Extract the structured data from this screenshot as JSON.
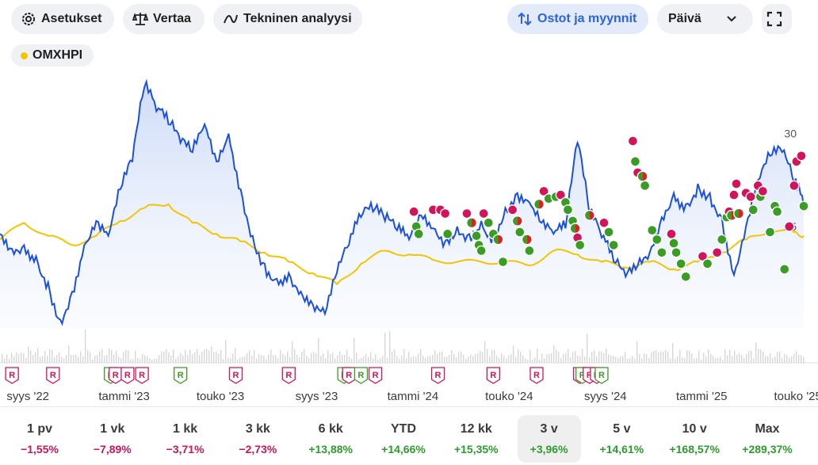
{
  "toolbar": {
    "settings": "Asetukset",
    "compare": "Vertaa",
    "technical": "Tekninen analyysi",
    "trades": "Ostot ja myynnit",
    "interval": "Päivä"
  },
  "legend": {
    "label": "OMXHPI",
    "color": "#f5c400"
  },
  "colors": {
    "stock": "#1a4fe0",
    "index": "#f5c400",
    "buy": "#3a9d23",
    "sell": "#d3135a",
    "volume": "#d7d7d7"
  },
  "chart_data": {
    "type": "line",
    "y_axis_ticks": [
      25,
      30
    ],
    "y_axis_side": "right",
    "x_tick_labels": [
      "syys '22",
      "tammi '23",
      "touko '23",
      "syys '23",
      "tammi '24",
      "touko '24",
      "syys '24",
      "tammi '25",
      "touko '25"
    ],
    "x_tick_positions": [
      0.5,
      4.5,
      8.5,
      12.5,
      16.5,
      20.5,
      24.5,
      28.5,
      32.5
    ],
    "x_unit": "months since Jun 2022",
    "series": [
      {
        "key": "stock",
        "x": [
          0,
          0.5,
          1,
          1.5,
          2,
          2.5,
          3,
          3.5,
          4,
          4.5,
          5,
          5.5,
          6,
          6.5,
          7,
          7.5,
          8,
          8.5,
          9,
          9.5,
          10,
          10.5,
          11,
          11.5,
          12,
          12.5,
          13,
          13.5,
          14,
          14.5,
          15,
          15.5,
          16,
          16.5,
          17,
          17.5,
          18,
          18.5,
          19,
          19.5,
          20,
          20.5,
          21,
          21.5,
          22,
          22.5,
          23,
          23.5,
          24,
          24.5,
          25,
          25.5,
          26,
          26.5,
          27,
          27.5,
          28,
          28.5,
          29,
          29.5,
          30,
          30.5,
          31,
          31.5,
          32,
          32.5,
          33,
          33.4
        ],
        "values": [
          24.6,
          23.8,
          24.0,
          23.4,
          22.0,
          20.0,
          21.5,
          24.0,
          25.3,
          24.5,
          27.0,
          28.5,
          32.5,
          31.2,
          30.5,
          29.5,
          29.0,
          30.5,
          28.5,
          30.0,
          27.0,
          24.5,
          23.0,
          22.2,
          22.5,
          21.5,
          20.8,
          20.3,
          22.5,
          24.0,
          25.5,
          25.8,
          25.3,
          24.8,
          24.3,
          25.6,
          24.9,
          24.2,
          25.0,
          24.6,
          25.3,
          24.5,
          26.0,
          26.8,
          26.3,
          25.2,
          24.6,
          24.9,
          29.5,
          25.6,
          24.4,
          23.1,
          22.3,
          22.9,
          23.6,
          25.5,
          26.8,
          26.2,
          27.3,
          26.8,
          25.5,
          22.4,
          25.0,
          27.5,
          28.8,
          29.0,
          27.3,
          26.1
        ]
      },
      {
        "key": "index",
        "x": [
          0,
          1,
          2,
          3,
          4,
          5,
          6,
          7,
          8,
          9,
          10,
          11,
          12,
          13,
          14,
          15,
          16,
          17,
          18,
          19,
          20,
          21,
          22,
          23,
          24,
          25,
          26,
          27,
          28,
          29,
          30,
          31,
          32,
          33,
          33.4
        ],
        "values": [
          24.3,
          25.2,
          24.5,
          24.0,
          24.5,
          25.3,
          26.0,
          26.2,
          25.2,
          24.6,
          24.2,
          23.6,
          23.1,
          22.5,
          21.9,
          23.0,
          23.7,
          23.5,
          23.2,
          23.1,
          23.1,
          23.1,
          22.9,
          23.7,
          23.5,
          23.1,
          22.8,
          23.1,
          22.7,
          23.1,
          23.6,
          24.3,
          24.8,
          24.7,
          24.5
        ]
      }
    ],
    "ylim": [
      19.5,
      32.5
    ],
    "xlim": [
      0,
      33.4
    ],
    "trade_markers": [
      {
        "x": 17.2,
        "y": 25.8,
        "type": "sell"
      },
      {
        "x": 17.3,
        "y": 25.0,
        "type": "buy"
      },
      {
        "x": 17.4,
        "y": 24.6,
        "type": "buy"
      },
      {
        "x": 18.0,
        "y": 25.9,
        "type": "sell"
      },
      {
        "x": 18.3,
        "y": 25.9,
        "type": "sell"
      },
      {
        "x": 18.5,
        "y": 25.7,
        "type": "sell"
      },
      {
        "x": 18.6,
        "y": 24.6,
        "type": "buy"
      },
      {
        "x": 19.4,
        "y": 25.7,
        "type": "sell"
      },
      {
        "x": 19.6,
        "y": 25.2,
        "type": "mixed"
      },
      {
        "x": 19.8,
        "y": 24.5,
        "type": "buy"
      },
      {
        "x": 19.9,
        "y": 24.0,
        "type": "buy"
      },
      {
        "x": 20.0,
        "y": 23.7,
        "type": "buy"
      },
      {
        "x": 20.1,
        "y": 25.7,
        "type": "sell"
      },
      {
        "x": 20.3,
        "y": 25.2,
        "type": "buy"
      },
      {
        "x": 20.5,
        "y": 24.6,
        "type": "buy"
      },
      {
        "x": 20.7,
        "y": 24.3,
        "type": "mixed"
      },
      {
        "x": 20.9,
        "y": 23.1,
        "type": "buy"
      },
      {
        "x": 21.3,
        "y": 25.9,
        "type": "sell"
      },
      {
        "x": 21.5,
        "y": 25.3,
        "type": "mixed"
      },
      {
        "x": 21.6,
        "y": 24.7,
        "type": "buy"
      },
      {
        "x": 21.9,
        "y": 24.3,
        "type": "mixed"
      },
      {
        "x": 22.0,
        "y": 23.7,
        "type": "buy"
      },
      {
        "x": 22.4,
        "y": 26.2,
        "type": "mixed"
      },
      {
        "x": 22.6,
        "y": 26.9,
        "type": "sell"
      },
      {
        "x": 22.8,
        "y": 26.5,
        "type": "buy"
      },
      {
        "x": 23.1,
        "y": 26.6,
        "type": "buy"
      },
      {
        "x": 23.3,
        "y": 26.7,
        "type": "sell"
      },
      {
        "x": 23.5,
        "y": 26.3,
        "type": "buy"
      },
      {
        "x": 23.6,
        "y": 25.9,
        "type": "buy"
      },
      {
        "x": 23.8,
        "y": 25.3,
        "type": "buy"
      },
      {
        "x": 23.9,
        "y": 24.9,
        "type": "mixed"
      },
      {
        "x": 24.0,
        "y": 24.4,
        "type": "sell"
      },
      {
        "x": 24.1,
        "y": 24.0,
        "type": "buy"
      },
      {
        "x": 24.5,
        "y": 25.6,
        "type": "mixed"
      },
      {
        "x": 25.1,
        "y": 25.2,
        "type": "sell"
      },
      {
        "x": 25.3,
        "y": 24.7,
        "type": "buy"
      },
      {
        "x": 25.5,
        "y": 24.0,
        "type": "buy"
      },
      {
        "x": 26.3,
        "y": 29.6,
        "type": "sell"
      },
      {
        "x": 26.4,
        "y": 28.5,
        "type": "buy"
      },
      {
        "x": 26.5,
        "y": 27.9,
        "type": "sell"
      },
      {
        "x": 26.7,
        "y": 27.7,
        "type": "mixed"
      },
      {
        "x": 26.8,
        "y": 27.2,
        "type": "buy"
      },
      {
        "x": 27.1,
        "y": 24.8,
        "type": "buy"
      },
      {
        "x": 27.3,
        "y": 24.3,
        "type": "buy"
      },
      {
        "x": 27.5,
        "y": 23.6,
        "type": "buy"
      },
      {
        "x": 27.9,
        "y": 24.6,
        "type": "sell"
      },
      {
        "x": 28.0,
        "y": 24.1,
        "type": "buy"
      },
      {
        "x": 28.1,
        "y": 23.6,
        "type": "buy"
      },
      {
        "x": 28.3,
        "y": 23.0,
        "type": "buy"
      },
      {
        "x": 28.5,
        "y": 22.3,
        "type": "buy"
      },
      {
        "x": 29.2,
        "y": 23.4,
        "type": "sell"
      },
      {
        "x": 29.4,
        "y": 23.0,
        "type": "buy"
      },
      {
        "x": 29.8,
        "y": 23.6,
        "type": "sell"
      },
      {
        "x": 30.0,
        "y": 24.3,
        "type": "buy"
      },
      {
        "x": 30.2,
        "y": 25.5,
        "type": "buy"
      },
      {
        "x": 30.3,
        "y": 25.8,
        "type": "sell"
      },
      {
        "x": 30.4,
        "y": 25.6,
        "type": "mixed"
      },
      {
        "x": 30.5,
        "y": 26.7,
        "type": "sell"
      },
      {
        "x": 30.6,
        "y": 27.3,
        "type": "sell"
      },
      {
        "x": 30.7,
        "y": 25.7,
        "type": "mixed"
      },
      {
        "x": 31.0,
        "y": 26.8,
        "type": "sell"
      },
      {
        "x": 31.2,
        "y": 26.6,
        "type": "sell"
      },
      {
        "x": 31.3,
        "y": 25.9,
        "type": "buy"
      },
      {
        "x": 31.5,
        "y": 27.2,
        "type": "sell"
      },
      {
        "x": 31.6,
        "y": 26.6,
        "type": "buy"
      },
      {
        "x": 31.7,
        "y": 26.9,
        "type": "sell"
      },
      {
        "x": 32.0,
        "y": 24.7,
        "type": "buy"
      },
      {
        "x": 32.2,
        "y": 26.1,
        "type": "buy"
      },
      {
        "x": 32.3,
        "y": 25.8,
        "type": "buy"
      },
      {
        "x": 32.6,
        "y": 22.7,
        "type": "buy"
      },
      {
        "x": 32.8,
        "y": 25.0,
        "type": "sell"
      },
      {
        "x": 33.0,
        "y": 27.2,
        "type": "sell"
      },
      {
        "x": 33.1,
        "y": 28.5,
        "type": "sell"
      },
      {
        "x": 33.3,
        "y": 28.8,
        "type": "sell"
      },
      {
        "x": 33.4,
        "y": 26.1,
        "type": "buy"
      }
    ],
    "event_markers": [
      {
        "x": 0.5,
        "type": "red"
      },
      {
        "x": 2.2,
        "type": "red"
      },
      {
        "x": 4.6,
        "type": "green"
      },
      {
        "x": 4.8,
        "type": "red"
      },
      {
        "x": 5.3,
        "type": "red"
      },
      {
        "x": 5.9,
        "type": "red"
      },
      {
        "x": 7.5,
        "type": "green"
      },
      {
        "x": 9.8,
        "type": "red"
      },
      {
        "x": 12.0,
        "type": "red"
      },
      {
        "x": 14.3,
        "type": "green"
      },
      {
        "x": 14.5,
        "type": "red"
      },
      {
        "x": 15.0,
        "type": "green"
      },
      {
        "x": 15.6,
        "type": "red"
      },
      {
        "x": 18.2,
        "type": "red"
      },
      {
        "x": 20.5,
        "type": "red"
      },
      {
        "x": 22.3,
        "type": "red"
      },
      {
        "x": 24.1,
        "type": "red"
      },
      {
        "x": 24.2,
        "type": "green"
      },
      {
        "x": 24.5,
        "type": "red"
      },
      {
        "x": 24.8,
        "type": "red"
      },
      {
        "x": 25.0,
        "type": "green"
      }
    ],
    "event_marker_label": "R"
  },
  "periods": [
    {
      "label": "1 pv",
      "change": "−1,55%",
      "dir": "neg"
    },
    {
      "label": "1 vk",
      "change": "−7,89%",
      "dir": "neg"
    },
    {
      "label": "1 kk",
      "change": "−3,71%",
      "dir": "neg"
    },
    {
      "label": "3 kk",
      "change": "−2,73%",
      "dir": "neg"
    },
    {
      "label": "6 kk",
      "change": "+13,88%",
      "dir": "pos"
    },
    {
      "label": "YTD",
      "change": "+14,66%",
      "dir": "pos"
    },
    {
      "label": "12 kk",
      "change": "+15,35%",
      "dir": "pos"
    },
    {
      "label": "3 v",
      "change": "+3,96%",
      "dir": "pos",
      "active": true
    },
    {
      "label": "5 v",
      "change": "+14,61%",
      "dir": "pos"
    },
    {
      "label": "10 v",
      "change": "+168,57%",
      "dir": "pos"
    },
    {
      "label": "Max",
      "change": "+289,37%",
      "dir": "pos"
    }
  ]
}
